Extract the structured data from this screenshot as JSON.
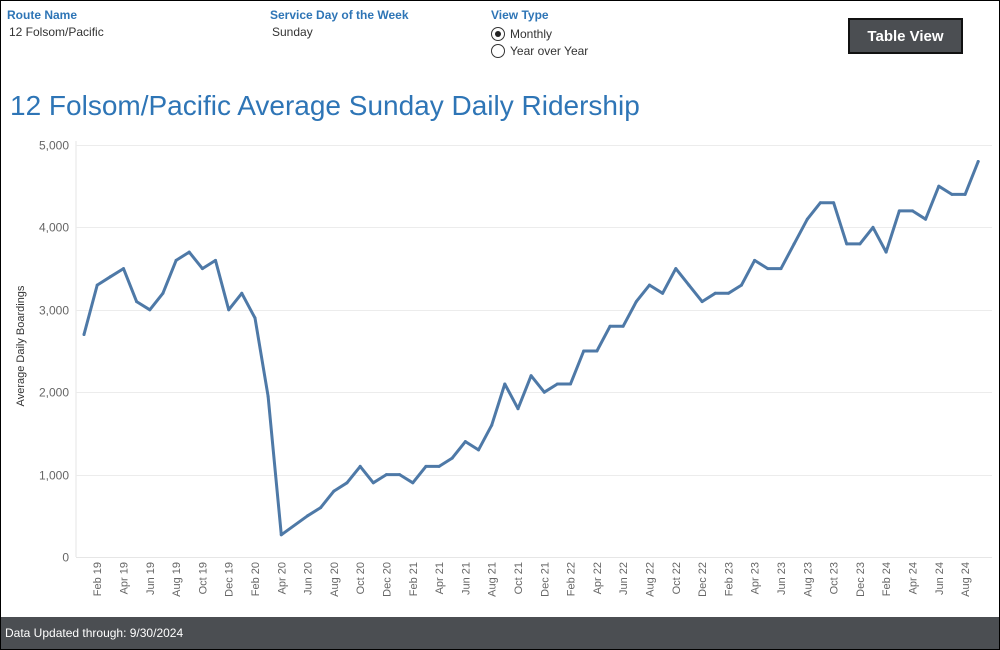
{
  "filters": {
    "route": {
      "label": "Route Name",
      "value": "12 Folsom/Pacific"
    },
    "day": {
      "label": "Service Day of the Week",
      "value": "Sunday"
    },
    "view": {
      "label": "View Type",
      "options": [
        "Monthly",
        "Year over Year"
      ],
      "selected": "Monthly"
    }
  },
  "table_view_label": "Table View",
  "footer_text": "Data Updated through: 9/30/2024",
  "colors": {
    "accent": "#2e75b6",
    "line": "#4e79a7",
    "footer": "#4b4e52"
  },
  "chart_data": {
    "type": "line",
    "title": "12 Folsom/Pacific Average Sunday Daily Ridership",
    "ylabel": "Average Daily Boardings",
    "xlabel": "",
    "ylim": [
      0,
      5000
    ],
    "yticks": [
      0,
      1000,
      2000,
      3000,
      4000,
      5000
    ],
    "ytick_labels": [
      "0",
      "1,000",
      "2,000",
      "3,000",
      "4,000",
      "5,000"
    ],
    "x": [
      "Jan 19",
      "Feb 19",
      "Mar 19",
      "Apr 19",
      "May 19",
      "Jun 19",
      "Jul 19",
      "Aug 19",
      "Sep 19",
      "Oct 19",
      "Nov 19",
      "Dec 19",
      "Jan 20",
      "Feb 20",
      "Mar 20",
      "Apr 20",
      "May 20",
      "Jun 20",
      "Jul 20",
      "Aug 20",
      "Sep 20",
      "Oct 20",
      "Nov 20",
      "Dec 20",
      "Jan 21",
      "Feb 21",
      "Mar 21",
      "Apr 21",
      "May 21",
      "Jun 21",
      "Jul 21",
      "Aug 21",
      "Sep 21",
      "Oct 21",
      "Nov 21",
      "Dec 21",
      "Jan 22",
      "Feb 22",
      "Mar 22",
      "Apr 22",
      "May 22",
      "Jun 22",
      "Jul 22",
      "Aug 22",
      "Sep 22",
      "Oct 22",
      "Nov 22",
      "Dec 22",
      "Jan 23",
      "Feb 23",
      "Mar 23",
      "Apr 23",
      "May 23",
      "Jun 23",
      "Jul 23",
      "Aug 23",
      "Sep 23",
      "Oct 23",
      "Nov 23",
      "Dec 23",
      "Jan 24",
      "Feb 24",
      "Mar 24",
      "Apr 24",
      "May 24",
      "Jun 24",
      "Jul 24",
      "Aug 24",
      "Sep 24"
    ],
    "xtick_labels": [
      "Feb 19",
      "Apr 19",
      "Jun 19",
      "Aug 19",
      "Oct 19",
      "Dec 19",
      "Feb 20",
      "Apr 20",
      "Jun 20",
      "Aug 20",
      "Oct 20",
      "Dec 20",
      "Feb 21",
      "Apr 21",
      "Jun 21",
      "Aug 21",
      "Oct 21",
      "Dec 21",
      "Feb 22",
      "Apr 22",
      "Jun 22",
      "Aug 22",
      "Oct 22",
      "Dec 22",
      "Feb 23",
      "Apr 23",
      "Jun 23",
      "Aug 23",
      "Oct 23",
      "Dec 23",
      "Feb 24",
      "Apr 24",
      "Jun 24",
      "Aug 24"
    ],
    "series": [
      {
        "values": [
          2700,
          3300,
          3400,
          3500,
          3100,
          3000,
          3200,
          3600,
          3700,
          3500,
          3600,
          3000,
          3200,
          2900,
          1950,
          270,
          null,
          500,
          600,
          800,
          900,
          1100,
          900,
          1000,
          1000,
          900,
          1100,
          1100,
          1200,
          1400,
          1300,
          1600,
          2100,
          1800,
          2200,
          2000,
          2100,
          2100,
          2500,
          2500,
          2800,
          2800,
          3100,
          3300,
          3200,
          3500,
          3300,
          3100,
          3200,
          3200,
          3300,
          3600,
          3500,
          3500,
          3800,
          4100,
          4300,
          4300,
          3800,
          3800,
          4000,
          3700,
          4200,
          4200,
          4100,
          4500,
          4400,
          4400,
          4800
        ]
      }
    ],
    "grid": "horizontal",
    "legend": "none"
  }
}
